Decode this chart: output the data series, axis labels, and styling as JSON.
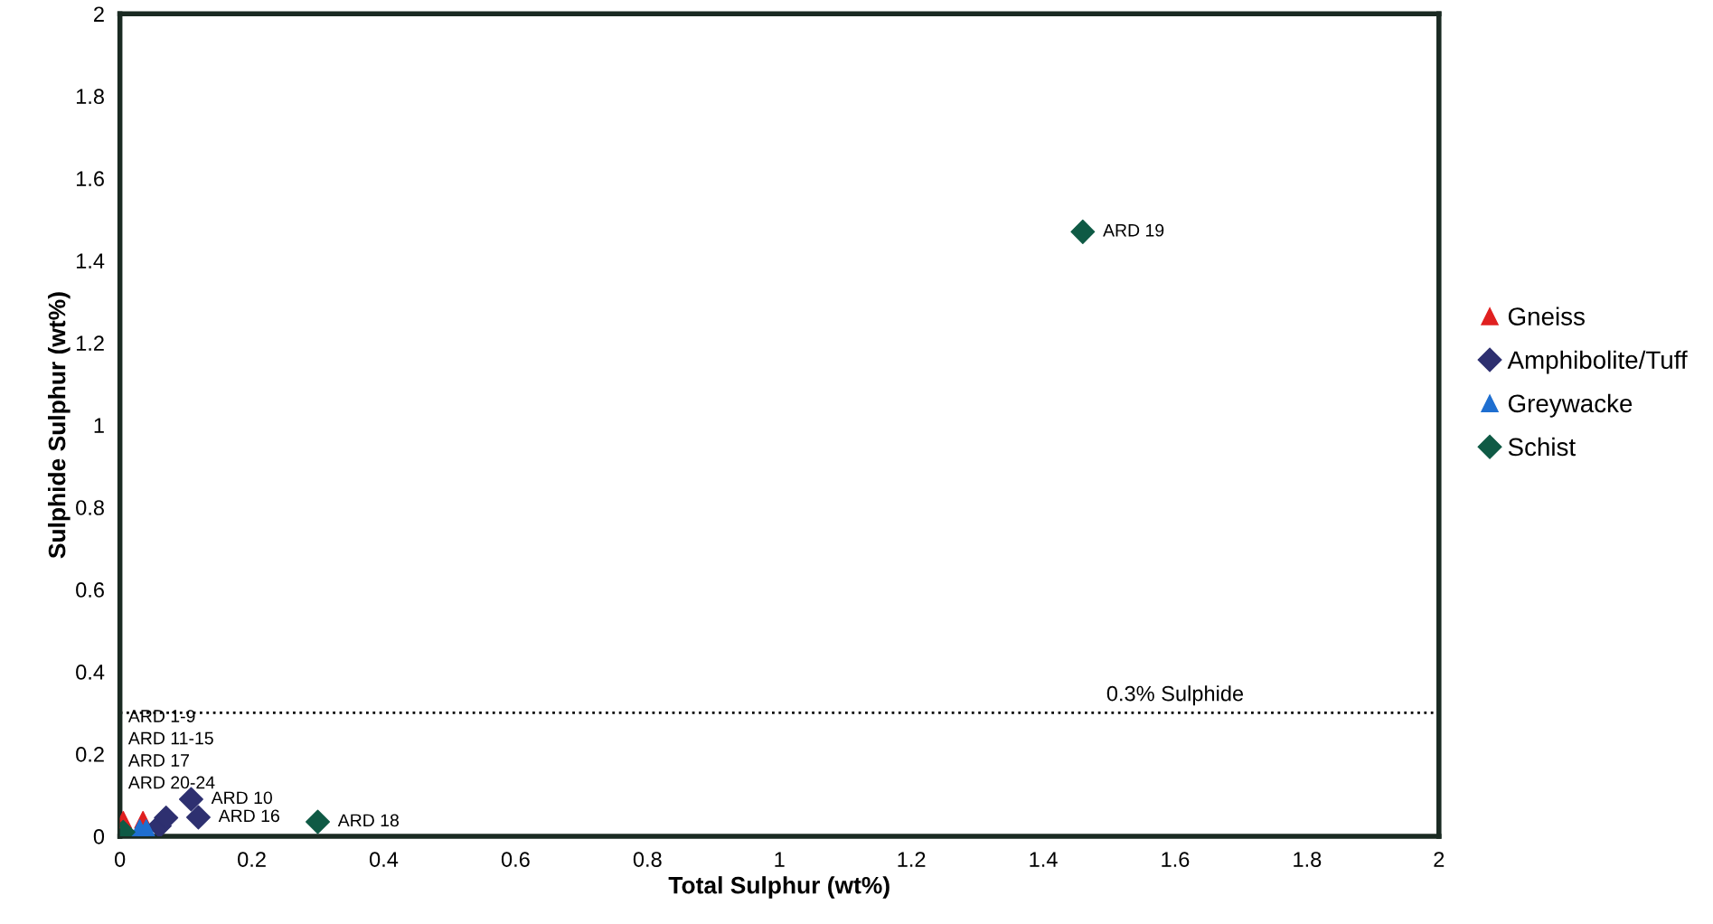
{
  "chart_data": {
    "type": "scatter",
    "xlabel": "Total Sulphur (wt%)",
    "ylabel": "Sulphide Sulphur (wt%)",
    "xlim": [
      0,
      2
    ],
    "ylim": [
      0,
      2
    ],
    "xticks": [
      0,
      0.2,
      0.4,
      0.6,
      0.8,
      1,
      1.2,
      1.4,
      1.6,
      1.8,
      2
    ],
    "yticks": [
      0,
      0.2,
      0.4,
      0.6,
      0.8,
      1,
      1.2,
      1.4,
      1.6,
      1.8,
      2
    ],
    "grid": false,
    "legend": "right",
    "series": [
      {
        "name": "Gneiss",
        "color": "#e02020",
        "marker": "triangle",
        "x": [
          0.005,
          0.035
        ],
        "values": [
          0.04,
          0.04
        ]
      },
      {
        "name": "Amphibolite/Tuff",
        "color": "#2e3070",
        "marker": "diamond",
        "x": [
          0.06,
          0.07,
          0.108,
          0.119
        ],
        "values": [
          0.025,
          0.045,
          0.09,
          0.046
        ]
      },
      {
        "name": "Greywacke",
        "color": "#1f6fd0",
        "marker": "triangle",
        "x": [
          0.03,
          0.04
        ],
        "values": [
          0.02,
          0.02
        ]
      },
      {
        "name": "Schist",
        "color": "#0f5a45",
        "marker": "diamond",
        "x": [
          0.005,
          0.3,
          1.46
        ],
        "values": [
          0.01,
          0.035,
          1.47
        ]
      }
    ],
    "ref_lines": [
      {
        "axis": "y",
        "value": 0.3,
        "label": "0.3% Sulphide",
        "line_style": "dotted",
        "color": "#000000"
      }
    ],
    "annotations": [
      {
        "text": "ARD 1-9\nARD 11-15\nARD 17\nARD 20-24",
        "x": 0.005,
        "y": 0.04
      },
      {
        "text": "ARD 10",
        "x": 0.108,
        "y": 0.09
      },
      {
        "text": "ARD 16",
        "x": 0.119,
        "y": 0.046
      },
      {
        "text": "ARD 18",
        "x": 0.3,
        "y": 0.035
      },
      {
        "text": "ARD 19",
        "x": 1.46,
        "y": 1.47
      }
    ]
  }
}
